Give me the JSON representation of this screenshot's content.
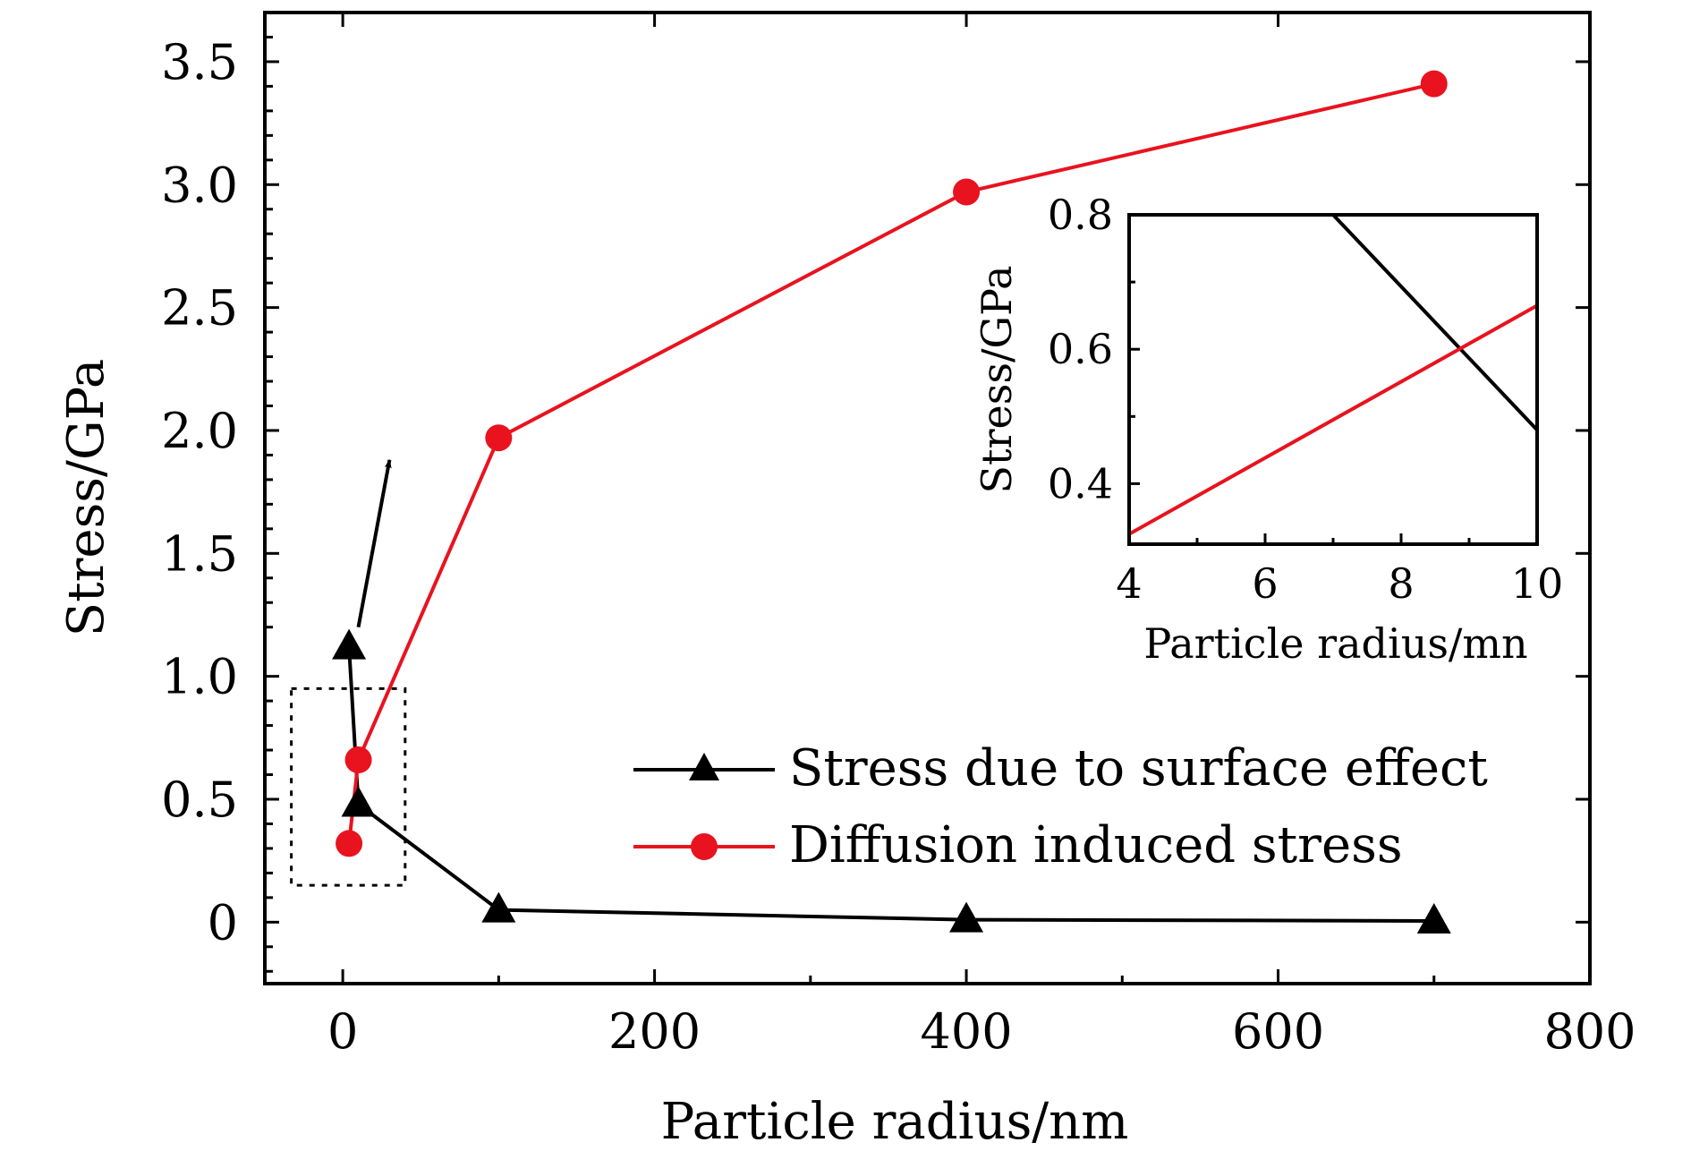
{
  "chart_data": [
    {
      "type": "line",
      "xlabel": "Particle radius/nm",
      "ylabel": "Stress/GPa",
      "xlim": [
        -50,
        800
      ],
      "ylim": [
        -0.25,
        3.7
      ],
      "x_ticks": [
        0,
        200,
        400,
        600,
        800
      ],
      "x_tick_labels": [
        "0",
        "200",
        "400",
        "600",
        "800"
      ],
      "y_ticks": [
        0,
        0.5,
        1.0,
        1.5,
        2.0,
        2.5,
        3.0,
        3.5
      ],
      "y_tick_labels": [
        "0",
        "0.5",
        "1.0",
        "1.5",
        "2.0",
        "2.5",
        "3.0",
        "3.5"
      ],
      "grid": false,
      "legend_position": "center-right",
      "series": [
        {
          "name": "Stress due to surface effect",
          "color": "#000000",
          "marker": "triangle",
          "x": [
            4,
            10,
            100,
            400,
            700
          ],
          "y": [
            1.12,
            0.48,
            0.05,
            0.01,
            0.005
          ]
        },
        {
          "name": "Diffusion induced stress",
          "color": "#e8131f",
          "marker": "circle",
          "x": [
            4,
            10,
            100,
            400,
            700
          ],
          "y": [
            0.32,
            0.66,
            1.97,
            2.97,
            3.41
          ]
        }
      ],
      "annotations": {
        "zoom_box": {
          "x": [
            -33,
            40
          ],
          "y": [
            0.15,
            0.95
          ]
        },
        "arrow": {
          "from": [
            10,
            1.2
          ],
          "to": [
            30,
            1.88
          ]
        }
      }
    },
    {
      "type": "line",
      "role": "inset",
      "xlabel": "Particle radius/mn",
      "ylabel": "Stress/GPa",
      "xlim": [
        4,
        10
      ],
      "ylim": [
        0.31,
        0.8
      ],
      "x_ticks": [
        4,
        6,
        8,
        10
      ],
      "x_tick_labels": [
        "4",
        "6",
        "8",
        "10"
      ],
      "y_ticks": [
        0.4,
        0.6,
        0.8
      ],
      "y_tick_labels": [
        "0.4",
        "0.6",
        "0.8"
      ],
      "grid": false,
      "series": [
        {
          "color": "#000000",
          "x": [
            7,
            10
          ],
          "y": [
            0.8,
            0.48
          ]
        },
        {
          "color": "#e8131f",
          "x": [
            4,
            10
          ],
          "y": [
            0.325,
            0.665
          ]
        }
      ]
    }
  ]
}
